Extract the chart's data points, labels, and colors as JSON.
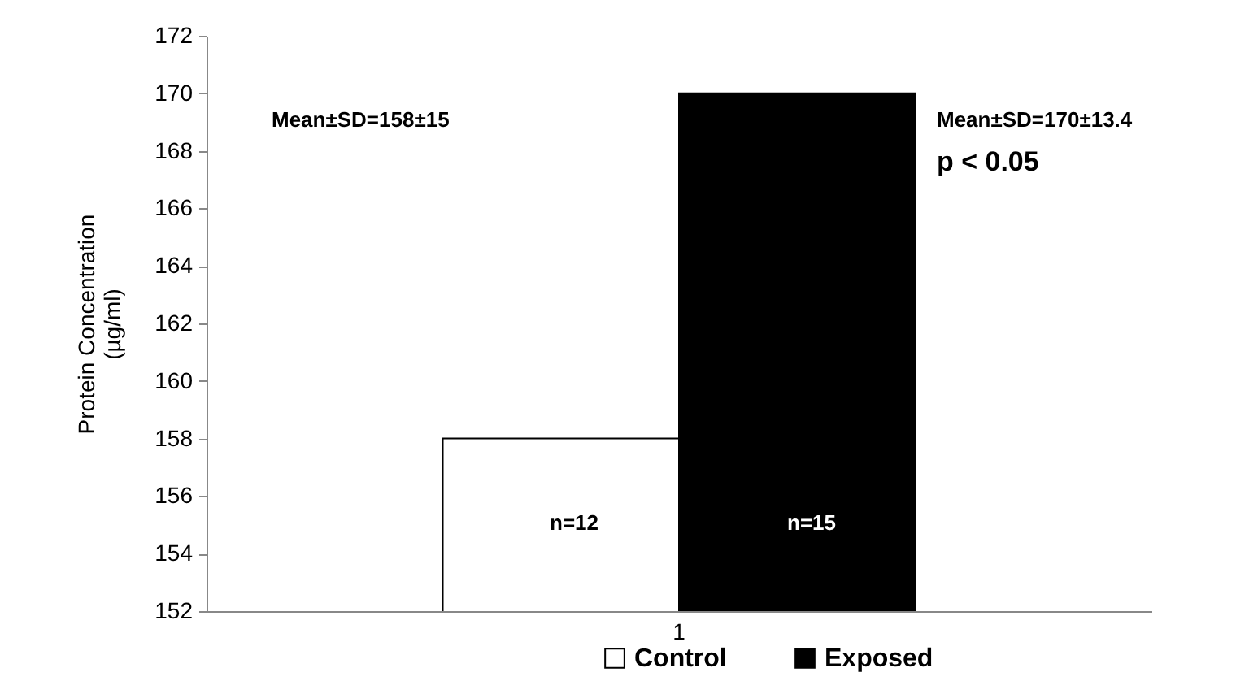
{
  "chart_data": {
    "type": "bar",
    "categories": [
      "1"
    ],
    "ylabel": "Protein Concentration (µg/ml)",
    "series": [
      {
        "name": "Control",
        "color": "#ffffff",
        "values": [
          158
        ]
      },
      {
        "name": "Exposed",
        "color": "#000000",
        "values": [
          170
        ]
      }
    ],
    "ylim": [
      152,
      172
    ],
    "yticks": [
      152,
      154,
      156,
      158,
      160,
      162,
      164,
      166,
      168,
      170,
      172
    ],
    "grid": false,
    "legend": "bottom",
    "annotations": [
      "Mean±SD=158±15",
      "Mean±SD=170±13.4",
      "p < 0.05",
      "n=12",
      "n=15"
    ]
  }
}
